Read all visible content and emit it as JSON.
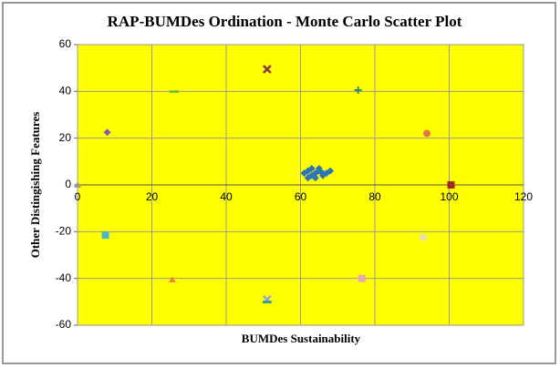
{
  "chart_data": {
    "type": "scatter",
    "title": "RAP-BUMDes Ordination - Monte Carlo Scatter Plot",
    "x_label": "BUMDes Sustainability",
    "y_label": "Other Distingishing Features",
    "xlim": [
      0,
      120
    ],
    "xticks": [
      0,
      20,
      40,
      60,
      80,
      100,
      120
    ],
    "ylim": [
      -60,
      60
    ],
    "yticks": [
      -60,
      -40,
      -20,
      0,
      20,
      40,
      60
    ],
    "grid": true,
    "background": "#ffff00",
    "series": [
      {
        "color": "#2e75b6",
        "marker": "diamond",
        "x": [
          61,
          62,
          62,
          63,
          63,
          64,
          64,
          65,
          65,
          66,
          66,
          67,
          68
        ],
        "values": [
          5,
          6,
          3,
          4,
          7,
          5,
          3,
          6,
          7,
          5,
          4,
          5,
          6
        ]
      },
      {
        "color": "#999999",
        "marker": "triangle",
        "x": [
          0
        ],
        "values": [
          0
        ]
      },
      {
        "color": "#7f5fa8",
        "marker": "diamond",
        "x": [
          8
        ],
        "values": [
          22.5
        ]
      },
      {
        "color": "#66bb44",
        "marker": "dash",
        "x": [
          26
        ],
        "values": [
          40
        ]
      },
      {
        "color": "#8b3a4a",
        "marker": "x",
        "x": [
          51
        ],
        "values": [
          49.5
        ]
      },
      {
        "color": "#3a8a5a",
        "marker": "plus",
        "x": [
          75.5
        ],
        "values": [
          40.5
        ]
      },
      {
        "color": "#e07840",
        "marker": "circle",
        "x": [
          94
        ],
        "values": [
          22
        ]
      },
      {
        "color": "#a52a20",
        "marker": "square",
        "x": [
          100.5
        ],
        "values": [
          0
        ]
      },
      {
        "color": "#e6e0b0",
        "marker": "circle",
        "x": [
          93
        ],
        "values": [
          -22.5
        ]
      },
      {
        "color": "#e8a8b8",
        "marker": "square",
        "x": [
          76.5
        ],
        "values": [
          -40
        ]
      },
      {
        "color": "#9aa6d6",
        "marker": "x",
        "x": [
          51
        ],
        "values": [
          -49
        ]
      },
      {
        "color": "#2a9a8a",
        "marker": "dash",
        "x": [
          51
        ],
        "values": [
          -50
        ]
      },
      {
        "color": "#f08a3a",
        "marker": "triangle",
        "x": [
          25.5
        ],
        "values": [
          -40.5
        ]
      },
      {
        "color": "#4ab8c8",
        "marker": "square",
        "x": [
          7.5
        ],
        "values": [
          -21.5
        ]
      }
    ]
  }
}
